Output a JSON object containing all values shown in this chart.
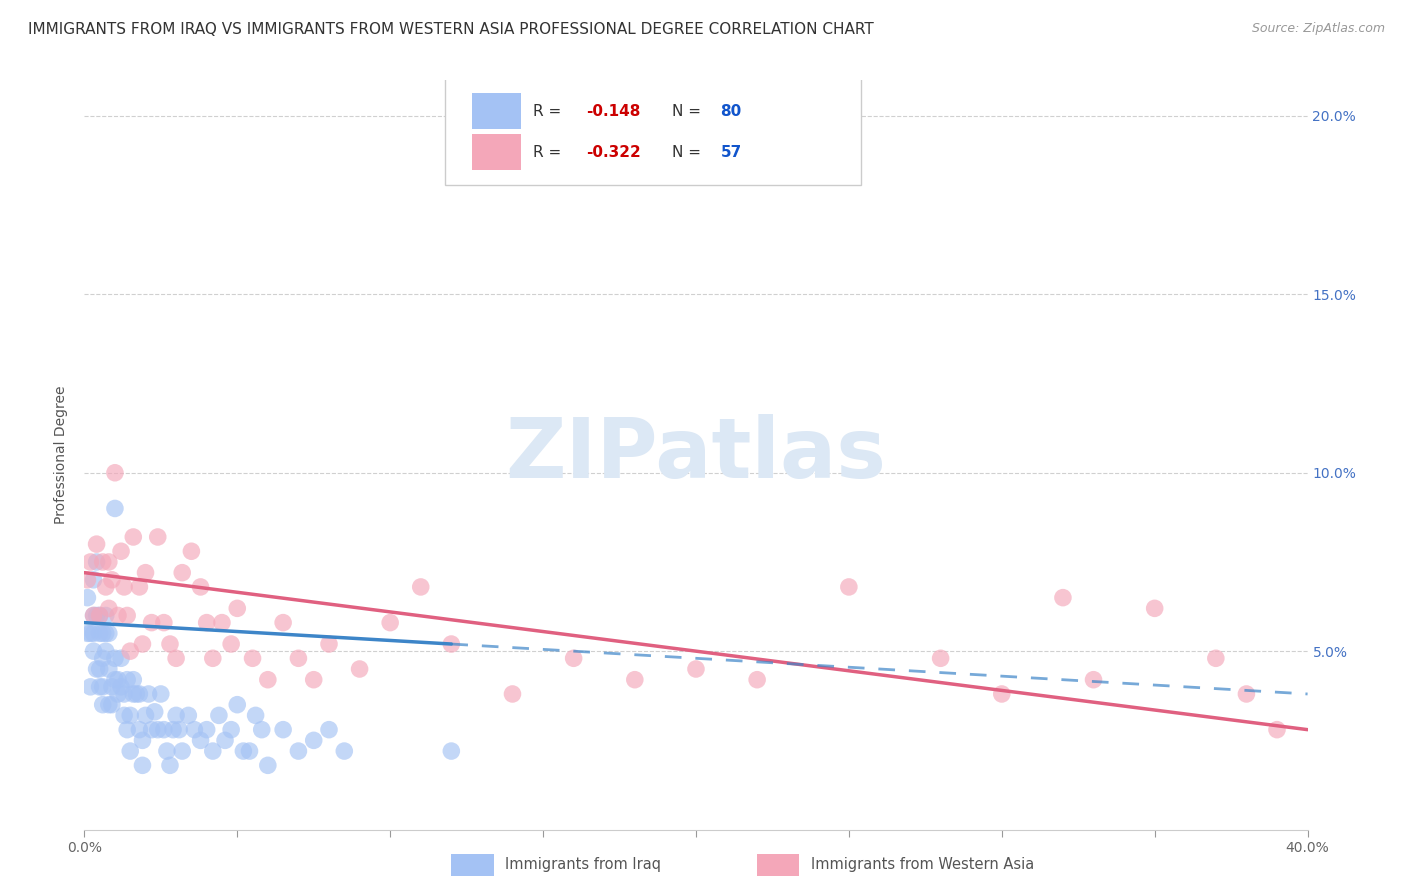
{
  "title": "IMMIGRANTS FROM IRAQ VS IMMIGRANTS FROM WESTERN ASIA PROFESSIONAL DEGREE CORRELATION CHART",
  "source": "Source: ZipAtlas.com",
  "ylabel": "Professional Degree",
  "xlim": [
    0.0,
    0.4
  ],
  "ylim": [
    0.0,
    0.21
  ],
  "xticks": [
    0.0,
    0.05,
    0.1,
    0.15,
    0.2,
    0.25,
    0.3,
    0.35,
    0.4
  ],
  "xticklabels": [
    "0.0%",
    "",
    "",
    "",
    "",
    "",
    "",
    "",
    "40.0%"
  ],
  "yticks": [
    0.0,
    0.05,
    0.1,
    0.15,
    0.2
  ],
  "yticklabels_right": [
    "",
    "5.0%",
    "10.0%",
    "15.0%",
    "20.0%"
  ],
  "watermark": "ZIPatlas",
  "legend_label1": "Immigrants from Iraq",
  "legend_label2": "Immigrants from Western Asia",
  "iraq_color": "#a4c2f4",
  "western_asia_color": "#f4a7b9",
  "iraq_line_color": "#3d85c8",
  "western_asia_line_color": "#e06080",
  "iraq_R": -0.148,
  "iraq_N": 80,
  "western_asia_R": -0.322,
  "western_asia_N": 57,
  "iraq_line_intercept": 0.058,
  "iraq_line_slope": -0.05,
  "wa_line_intercept": 0.072,
  "wa_line_slope": -0.11,
  "iraq_x": [
    0.001,
    0.001,
    0.002,
    0.002,
    0.003,
    0.003,
    0.003,
    0.003,
    0.004,
    0.004,
    0.004,
    0.005,
    0.005,
    0.005,
    0.005,
    0.006,
    0.006,
    0.006,
    0.006,
    0.007,
    0.007,
    0.007,
    0.008,
    0.008,
    0.008,
    0.009,
    0.009,
    0.01,
    0.01,
    0.01,
    0.011,
    0.011,
    0.012,
    0.012,
    0.013,
    0.013,
    0.014,
    0.014,
    0.015,
    0.015,
    0.016,
    0.016,
    0.017,
    0.018,
    0.018,
    0.019,
    0.019,
    0.02,
    0.021,
    0.022,
    0.023,
    0.024,
    0.025,
    0.026,
    0.027,
    0.028,
    0.029,
    0.03,
    0.031,
    0.032,
    0.034,
    0.036,
    0.038,
    0.04,
    0.042,
    0.044,
    0.046,
    0.048,
    0.05,
    0.052,
    0.054,
    0.056,
    0.058,
    0.06,
    0.065,
    0.07,
    0.075,
    0.08,
    0.085,
    0.12
  ],
  "iraq_y": [
    0.055,
    0.065,
    0.04,
    0.055,
    0.05,
    0.055,
    0.06,
    0.07,
    0.045,
    0.06,
    0.075,
    0.04,
    0.045,
    0.055,
    0.06,
    0.035,
    0.04,
    0.048,
    0.055,
    0.05,
    0.055,
    0.06,
    0.035,
    0.045,
    0.055,
    0.035,
    0.04,
    0.042,
    0.048,
    0.09,
    0.038,
    0.042,
    0.04,
    0.048,
    0.032,
    0.038,
    0.028,
    0.042,
    0.022,
    0.032,
    0.038,
    0.042,
    0.038,
    0.028,
    0.038,
    0.018,
    0.025,
    0.032,
    0.038,
    0.028,
    0.033,
    0.028,
    0.038,
    0.028,
    0.022,
    0.018,
    0.028,
    0.032,
    0.028,
    0.022,
    0.032,
    0.028,
    0.025,
    0.028,
    0.022,
    0.032,
    0.025,
    0.028,
    0.035,
    0.022,
    0.022,
    0.032,
    0.028,
    0.018,
    0.028,
    0.022,
    0.025,
    0.028,
    0.022,
    0.022
  ],
  "wa_x": [
    0.001,
    0.002,
    0.003,
    0.004,
    0.005,
    0.006,
    0.007,
    0.008,
    0.008,
    0.009,
    0.01,
    0.011,
    0.012,
    0.013,
    0.014,
    0.015,
    0.016,
    0.018,
    0.019,
    0.02,
    0.022,
    0.024,
    0.026,
    0.028,
    0.03,
    0.032,
    0.035,
    0.038,
    0.04,
    0.042,
    0.045,
    0.048,
    0.05,
    0.055,
    0.06,
    0.065,
    0.07,
    0.075,
    0.08,
    0.09,
    0.1,
    0.11,
    0.12,
    0.14,
    0.16,
    0.18,
    0.2,
    0.22,
    0.25,
    0.28,
    0.3,
    0.32,
    0.33,
    0.35,
    0.37,
    0.38,
    0.39
  ],
  "wa_y": [
    0.07,
    0.075,
    0.06,
    0.08,
    0.06,
    0.075,
    0.068,
    0.062,
    0.075,
    0.07,
    0.1,
    0.06,
    0.078,
    0.068,
    0.06,
    0.05,
    0.082,
    0.068,
    0.052,
    0.072,
    0.058,
    0.082,
    0.058,
    0.052,
    0.048,
    0.072,
    0.078,
    0.068,
    0.058,
    0.048,
    0.058,
    0.052,
    0.062,
    0.048,
    0.042,
    0.058,
    0.048,
    0.042,
    0.052,
    0.045,
    0.058,
    0.068,
    0.052,
    0.038,
    0.048,
    0.042,
    0.045,
    0.042,
    0.068,
    0.048,
    0.038,
    0.065,
    0.042,
    0.062,
    0.048,
    0.038,
    0.028
  ],
  "grid_color": "#d0d0d0",
  "background_color": "#ffffff",
  "title_fontsize": 11,
  "axis_label_fontsize": 10,
  "tick_fontsize": 10,
  "legend_fontsize": 11,
  "watermark_color": "#dce8f5",
  "watermark_fontsize": 60,
  "legend_patch_color1": "#a4c2f4",
  "legend_patch_color2": "#f4a7b9",
  "legend_r1_color": "#cc0000",
  "legend_n1_color": "#1155cc",
  "legend_r2_color": "#cc0000",
  "legend_n2_color": "#1155cc"
}
